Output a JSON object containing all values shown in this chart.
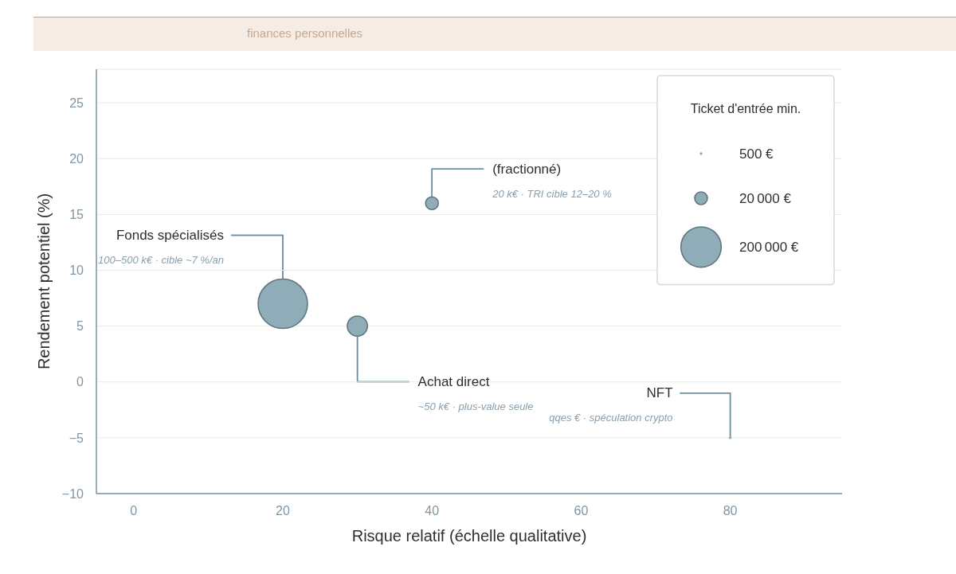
{
  "chart_data": {
    "type": "bubble",
    "subtitle": "finances personnelles",
    "xlabel": "Risque relatif (échelle qualitative)",
    "ylabel": "Rendement potentiel (%)",
    "legend_title": "Ticket d'entrée min.",
    "x": [
      20,
      30,
      40,
      80
    ],
    "values": [
      7,
      5,
      16,
      -5
    ],
    "sizes": [
      300000,
      50000,
      20000,
      500
    ],
    "color": "#8eadb9",
    "size_legend": [
      {
        "value": 500,
        "label": "500 €"
      },
      {
        "value": 20000,
        "label": "20 000 €"
      },
      {
        "value": 200000,
        "label": "200 000 €"
      }
    ],
    "annotations": [
      {
        "text": "Fonds spécialisés",
        "x": 20,
        "y": 7
      },
      "100–500 k€ · cible ~7 %/an",
      {
        "text": "Achat direct",
        "x": 30,
        "y": 5
      },
      "~50 k€ · plus-value seule",
      {
        "text": "(fractionné)",
        "x": 40,
        "y": 16
      },
      "20 k€ · TRI cible 12–20 %",
      {
        "text": "NFT",
        "x": 80,
        "y": -5
      },
      "qqes € · spéculation crypto"
    ],
    "xlim": [
      -5,
      95
    ],
    "xticks": [
      0,
      20,
      40,
      60,
      80
    ],
    "ylim": [
      -10,
      28
    ],
    "yticks": [
      {
        "value": -10,
        "label": "−10"
      },
      {
        "value": -5,
        "label": "−5"
      },
      0,
      5,
      10,
      15,
      20,
      25
    ],
    "grid": "y"
  }
}
